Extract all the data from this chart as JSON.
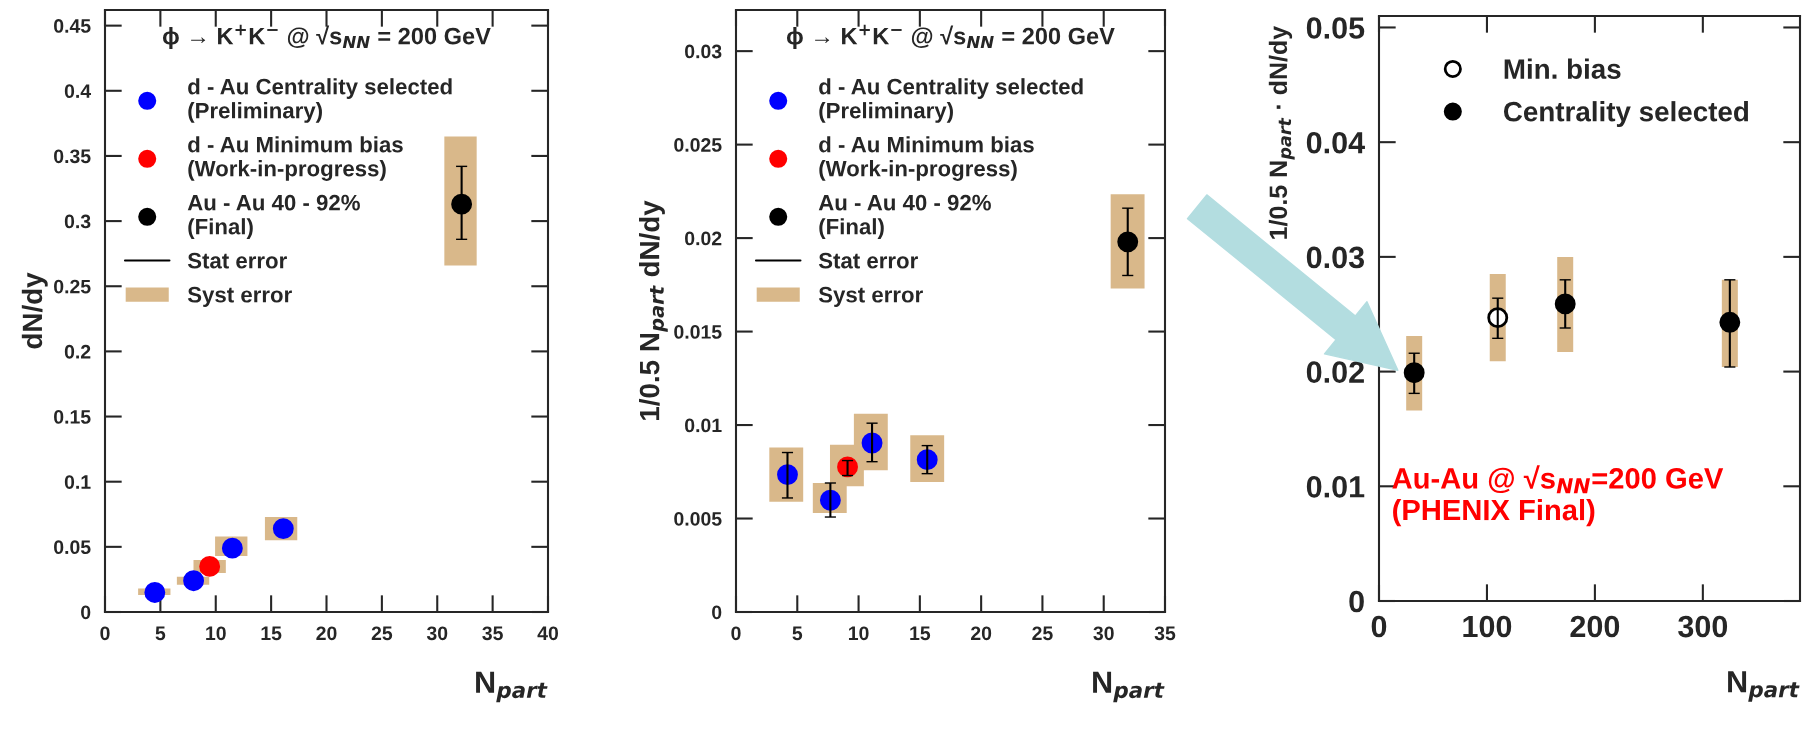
{
  "chart_data": [
    {
      "type": "scatter",
      "ylabel": "dN/dy",
      "xlabel": "N$_{part}$",
      "annotations": [
        "ϕ → K$^{+}$K$^{−}$ @ √s$_{NN}$ = 200 GeV",
        "Stat error"
      ],
      "xlim": [
        0,
        40
      ],
      "xticks": [
        0,
        5,
        10,
        15,
        20,
        25,
        30,
        35,
        40
      ],
      "ylim": [
        0,
        0.462
      ],
      "yticks": [
        0,
        0.05,
        0.1,
        0.15,
        0.2,
        0.25,
        0.3,
        0.35,
        0.4,
        0.45
      ],
      "legend": "top left",
      "grid": false,
      "series": [
        {
          "name": "d - Au Centrality selected\n(Preliminary)",
          "marker": "circle",
          "color": "#0000ff",
          "x": [
            4.5,
            8.0,
            11.5,
            16.1
          ],
          "values": [
            0.015,
            0.024,
            0.049,
            0.064
          ]
        },
        {
          "name": "d - Au Minimum bias\n(Work-in-progress)",
          "marker": "circle",
          "color": "#ff0000",
          "x": [
            9.45
          ],
          "values": [
            0.035
          ]
        },
        {
          "name": "Au - Au 40 - 92%\n(Final)",
          "marker": "circle",
          "color": "#000000",
          "x": [
            32.2
          ],
          "values": [
            0.313
          ],
          "errors": [
            [
              0.286,
              0.342
            ]
          ]
        },
        {
          "name": "Syst error",
          "type": "bar",
          "color": "#d9b88a",
          "x": [
            4.45,
            7.95,
            9.45,
            11.4,
            15.9,
            32.1
          ],
          "base": [
            0.013,
            0.021,
            0.03,
            0.043,
            0.055,
            0.266
          ],
          "values": [
            0.005,
            0.006,
            0.01,
            0.015,
            0.018,
            0.099
          ]
        }
      ]
    },
    {
      "type": "scatter",
      "ylabel": "1/0.5 N$_{part}$ dN/dy",
      "xlabel": "N$_{part}$",
      "annotations": [
        "ϕ → K$^{+}$K$^{−}$ @ √s$_{NN}$ = 200 GeV",
        "Stat error"
      ],
      "xlim": [
        0,
        35
      ],
      "xticks": [
        0,
        5,
        10,
        15,
        20,
        25,
        30,
        35
      ],
      "ylim": [
        0,
        0.0322
      ],
      "yticks": [
        0,
        0.005,
        0.01,
        0.015,
        0.02,
        0.025,
        0.03
      ],
      "legend": "top left",
      "grid": false,
      "series": [
        {
          "name": "d - Au Centrality selected\n(Preliminary)",
          "marker": "circle",
          "color": "#0000ff",
          "x": [
            4.2,
            7.7,
            11.1,
            15.6
          ],
          "values": [
            0.00735,
            0.00598,
            0.00904,
            0.00815
          ],
          "errors": [
            [
              0.0061,
              0.00853
            ],
            [
              0.00508,
              0.0069
            ],
            [
              0.00804,
              0.0101
            ],
            [
              0.0074,
              0.0089
            ]
          ]
        },
        {
          "name": "d - Au Minimum bias\n(Work-in-progress)",
          "marker": "circle",
          "color": "#ff0000",
          "x": [
            9.1
          ],
          "values": [
            0.00776
          ],
          "errors": [
            [
              0.0073,
              0.0081
            ]
          ]
        },
        {
          "name": "Au - Au 40 - 92%\n(Final)",
          "marker": "circle",
          "color": "#000000",
          "x": [
            31.96
          ],
          "values": [
            0.0198
          ],
          "errors": [
            [
              0.018,
              0.0216
            ]
          ]
        },
        {
          "name": "Syst error",
          "type": "bar",
          "color": "#d9b88a",
          "x": [
            4.1,
            7.65,
            9.05,
            11.0,
            15.6,
            31.95
          ],
          "base": [
            0.0059,
            0.00529,
            0.00672,
            0.00758,
            0.00695,
            0.01731
          ],
          "values": [
            0.0029,
            0.00161,
            0.00222,
            0.00302,
            0.0025,
            0.00503
          ]
        }
      ]
    },
    {
      "type": "scatter",
      "ylabel": "1/0.5 N$_{part}$ · dN/dy",
      "xlabel": "N$_{part}$",
      "annotations": [
        "Au-Au @ √s$_{NN}$=200 GeV\n(PHENIX Final)"
      ],
      "xlim": [
        0,
        390
      ],
      "xticks": [
        0,
        100,
        200,
        300
      ],
      "ylim": [
        0,
        0.051
      ],
      "yticks": [
        0,
        0.01,
        0.02,
        0.03,
        0.04,
        0.05
      ],
      "legend": "top left",
      "grid": false,
      "series": [
        {
          "type": "bar",
          "color": "#d9b88a",
          "x": [
            32.6,
            110,
            172.5,
            325
          ],
          "base": [
            0.0166,
            0.0209,
            0.0217,
            0.0204
          ],
          "values": [
            0.0065,
            0.0076,
            0.0083,
            0.0076
          ]
        },
        {
          "name": "Min. bias",
          "marker": "circle",
          "color": "#ffffff",
          "x": [
            110
          ],
          "values": [
            0.0247
          ],
          "errors": [
            [
              0.0229,
              0.0264
            ]
          ]
        },
        {
          "name": "Centrality selected",
          "marker": "circle",
          "color": "#000000",
          "x": [
            32.6,
            172.5,
            325
          ],
          "values": [
            0.0199,
            0.0259,
            0.0243
          ],
          "errors": [
            [
              0.0181,
              0.0216
            ],
            [
              0.0238,
              0.028
            ],
            [
              0.0204,
              0.028
            ]
          ]
        }
      ]
    }
  ]
}
